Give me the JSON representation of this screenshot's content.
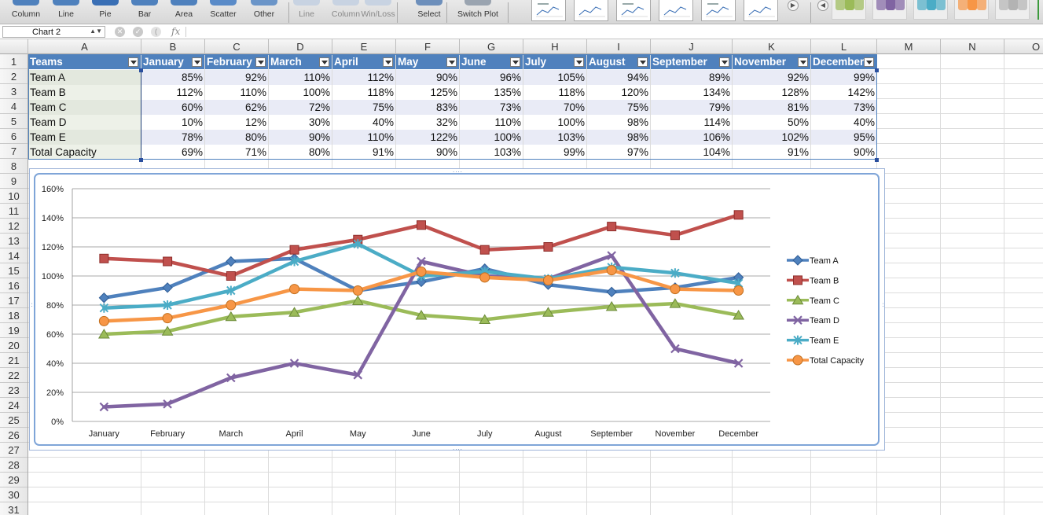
{
  "ribbon": {
    "groups": [
      {
        "label": "Column",
        "icon": "column-chart-icon",
        "disabled": false
      },
      {
        "label": "Line",
        "icon": "line-chart-icon",
        "disabled": false
      },
      {
        "label": "Pie",
        "icon": "pie-chart-icon",
        "disabled": false
      },
      {
        "label": "Bar",
        "icon": "bar-chart-icon",
        "disabled": false
      },
      {
        "label": "Area",
        "icon": "area-chart-icon",
        "disabled": false
      },
      {
        "label": "Scatter",
        "icon": "scatter-chart-icon",
        "disabled": false
      },
      {
        "label": "Other",
        "icon": "other-chart-icon",
        "disabled": false
      },
      {
        "label": "Line",
        "icon": "sparkline-line-icon",
        "disabled": true
      },
      {
        "label": "Column",
        "icon": "sparkline-column-icon",
        "disabled": true
      },
      {
        "label": "Win/Loss",
        "icon": "sparkline-winloss-icon",
        "disabled": true
      },
      {
        "label": "Select",
        "icon": "select-data-icon",
        "disabled": false
      },
      {
        "label": "Switch Plot",
        "icon": "switch-plot-icon",
        "disabled": false
      }
    ],
    "colors": {
      "accent": "#4f81bd",
      "style_swatches": [
        "#9bbb59",
        "#8064a2",
        "#4bacc6",
        "#f79646",
        "#b3b3b3"
      ]
    }
  },
  "formula_bar": {
    "name_box": "Chart 2",
    "fx_label": "fx",
    "formula": ""
  },
  "columns": [
    "A",
    "B",
    "C",
    "D",
    "E",
    "F",
    "G",
    "H",
    "I",
    "J",
    "K",
    "L",
    "M",
    "N",
    "O"
  ],
  "rows": [
    "1",
    "2",
    "3",
    "4",
    "5",
    "6",
    "7",
    "8",
    "9",
    "10",
    "11",
    "12",
    "13",
    "14",
    "15",
    "16",
    "17",
    "18",
    "19",
    "20",
    "21",
    "22",
    "23",
    "24",
    "25",
    "26",
    "27",
    "28",
    "29",
    "30",
    "31"
  ],
  "table": {
    "headers": [
      "Teams",
      "January",
      "February",
      "March",
      "April",
      "May",
      "June",
      "July",
      "August",
      "September",
      "November",
      "December"
    ],
    "rows": [
      {
        "team": "Team A",
        "values": [
          "85%",
          "92%",
          "110%",
          "112%",
          "90%",
          "96%",
          "105%",
          "94%",
          "89%",
          "92%",
          "99%"
        ]
      },
      {
        "team": "Team B",
        "values": [
          "112%",
          "110%",
          "100%",
          "118%",
          "125%",
          "135%",
          "118%",
          "120%",
          "134%",
          "128%",
          "142%"
        ]
      },
      {
        "team": "Team C",
        "values": [
          "60%",
          "62%",
          "72%",
          "75%",
          "83%",
          "73%",
          "70%",
          "75%",
          "79%",
          "81%",
          "73%"
        ]
      },
      {
        "team": "Team D",
        "values": [
          "10%",
          "12%",
          "30%",
          "40%",
          "32%",
          "110%",
          "100%",
          "98%",
          "114%",
          "50%",
          "40%"
        ]
      },
      {
        "team": "Team E",
        "values": [
          "78%",
          "80%",
          "90%",
          "110%",
          "122%",
          "100%",
          "103%",
          "98%",
          "106%",
          "102%",
          "95%"
        ]
      },
      {
        "team": "Total Capacity",
        "values": [
          "69%",
          "71%",
          "80%",
          "91%",
          "90%",
          "103%",
          "99%",
          "97%",
          "104%",
          "91%",
          "90%"
        ]
      }
    ]
  },
  "chart_data": {
    "type": "line",
    "categories": [
      "January",
      "February",
      "March",
      "April",
      "May",
      "June",
      "July",
      "August",
      "September",
      "November",
      "December"
    ],
    "series": [
      {
        "name": "Team A",
        "color": "#4f81bd",
        "marker": "diamond",
        "values": [
          85,
          92,
          110,
          112,
          90,
          96,
          105,
          94,
          89,
          92,
          99
        ]
      },
      {
        "name": "Team B",
        "color": "#c0504d",
        "marker": "square",
        "values": [
          112,
          110,
          100,
          118,
          125,
          135,
          118,
          120,
          134,
          128,
          142
        ]
      },
      {
        "name": "Team C",
        "color": "#9bbb59",
        "marker": "triangle",
        "values": [
          60,
          62,
          72,
          75,
          83,
          73,
          70,
          75,
          79,
          81,
          73
        ]
      },
      {
        "name": "Team D",
        "color": "#8064a2",
        "marker": "x",
        "values": [
          10,
          12,
          30,
          40,
          32,
          110,
          100,
          98,
          114,
          50,
          40
        ]
      },
      {
        "name": "Team E",
        "color": "#4bacc6",
        "marker": "star",
        "values": [
          78,
          80,
          90,
          110,
          122,
          100,
          103,
          98,
          106,
          102,
          95
        ]
      },
      {
        "name": "Total Capacity",
        "color": "#f79646",
        "marker": "circle",
        "values": [
          69,
          71,
          80,
          91,
          90,
          103,
          99,
          97,
          104,
          91,
          90
        ]
      }
    ],
    "y_ticks": [
      "0%",
      "20%",
      "40%",
      "60%",
      "80%",
      "100%",
      "120%",
      "140%",
      "160%"
    ],
    "ylim": [
      0,
      160
    ],
    "grid": true,
    "legend_position": "right"
  }
}
